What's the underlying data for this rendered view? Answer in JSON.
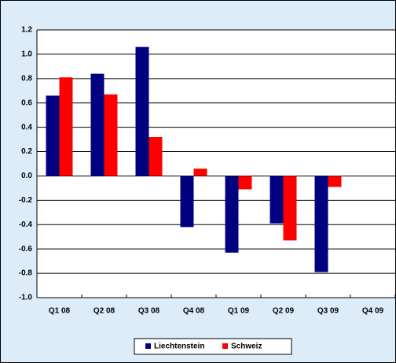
{
  "chart_data": {
    "type": "bar",
    "categories": [
      "Q1 08",
      "Q2 08",
      "Q3 08",
      "Q4 08",
      "Q1 09",
      "Q2 09",
      "Q3 09",
      "Q4 09"
    ],
    "series": [
      {
        "name": "Liechtenstein",
        "color": "#000080",
        "values": [
          0.66,
          0.84,
          1.06,
          -0.42,
          -0.63,
          -0.39,
          -0.79,
          null
        ]
      },
      {
        "name": "Schweiz",
        "color": "#ff0000",
        "values": [
          0.81,
          0.67,
          0.32,
          0.06,
          -0.11,
          -0.53,
          -0.09,
          null
        ]
      }
    ],
    "ylim": [
      -1,
      1.2
    ],
    "yticks": [
      {
        "value": -1,
        "label": "-1.0"
      },
      -0.8,
      -0.6,
      -0.4,
      -0.2,
      {
        "value": 0,
        "label": "0.0"
      },
      0.2,
      0.4,
      0.6,
      0.8,
      {
        "value": 1,
        "label": "1.0"
      },
      1.2
    ],
    "grid": true,
    "legend": "bottom"
  }
}
